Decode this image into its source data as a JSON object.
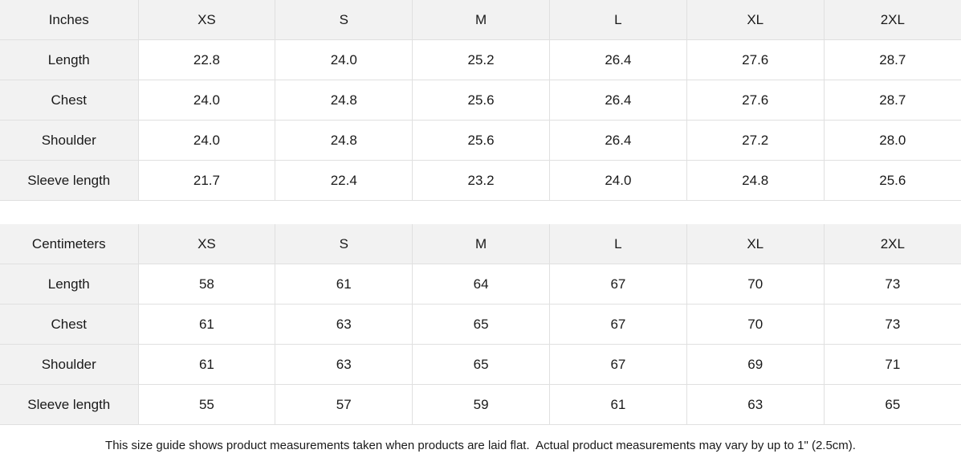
{
  "colors": {
    "header_background": "#f2f2f2",
    "label_background": "#f2f2f2",
    "border": "#e0e0e0",
    "text": "#1a1a1a",
    "page_background": "#ffffff"
  },
  "size_guide": {
    "tables": [
      {
        "unit_label": "Inches",
        "columns": [
          "XS",
          "S",
          "M",
          "L",
          "XL",
          "2XL"
        ],
        "rows": [
          {
            "label": "Length",
            "values": [
              "22.8",
              "24.0",
              "25.2",
              "26.4",
              "27.6",
              "28.7"
            ]
          },
          {
            "label": "Chest",
            "values": [
              "24.0",
              "24.8",
              "25.6",
              "26.4",
              "27.6",
              "28.7"
            ]
          },
          {
            "label": "Shoulder",
            "values": [
              "24.0",
              "24.8",
              "25.6",
              "26.4",
              "27.2",
              "28.0"
            ]
          },
          {
            "label": "Sleeve length",
            "values": [
              "21.7",
              "22.4",
              "23.2",
              "24.0",
              "24.8",
              "25.6"
            ]
          }
        ]
      },
      {
        "unit_label": "Centimeters",
        "columns": [
          "XS",
          "S",
          "M",
          "L",
          "XL",
          "2XL"
        ],
        "rows": [
          {
            "label": "Length",
            "values": [
              "58",
              "61",
              "64",
              "67",
              "70",
              "73"
            ]
          },
          {
            "label": "Chest",
            "values": [
              "61",
              "63",
              "65",
              "67",
              "70",
              "73"
            ]
          },
          {
            "label": "Shoulder",
            "values": [
              "61",
              "63",
              "65",
              "67",
              "69",
              "71"
            ]
          },
          {
            "label": "Sleeve length",
            "values": [
              "55",
              "57",
              "59",
              "61",
              "63",
              "65"
            ]
          }
        ]
      }
    ],
    "footnote": "This size guide shows product measurements taken when products are laid flat.  Actual product measurements may vary by up to 1\" (2.5cm)."
  }
}
